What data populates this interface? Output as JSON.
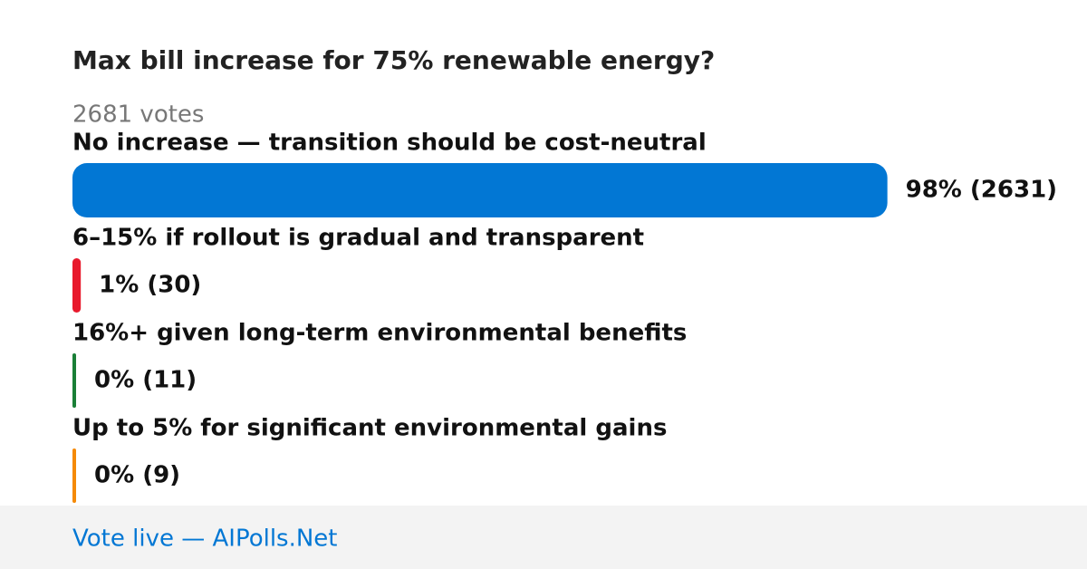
{
  "poll": {
    "title": "Max bill increase for 75% renewable energy?",
    "votes_text": "2681 votes",
    "options": [
      {
        "label": "No increase — transition should be cost-neutral",
        "percent": 98,
        "votes": 2631,
        "value_label": "98% (2631)",
        "color": "#0277d4"
      },
      {
        "label": "6–15% if rollout is gradual and transparent",
        "percent": 1,
        "votes": 30,
        "value_label": "1% (30)",
        "color": "#e8192c"
      },
      {
        "label": "16%+ given long-term environmental benefits",
        "percent": 0,
        "votes": 11,
        "value_label": "0% (11)",
        "color": "#1a7f37"
      },
      {
        "label": "Up to 5% for significant environmental gains",
        "percent": 0,
        "votes": 9,
        "value_label": "0% (9)",
        "color": "#f58a07"
      }
    ],
    "footer": "Vote live — AIPolls.Net"
  }
}
